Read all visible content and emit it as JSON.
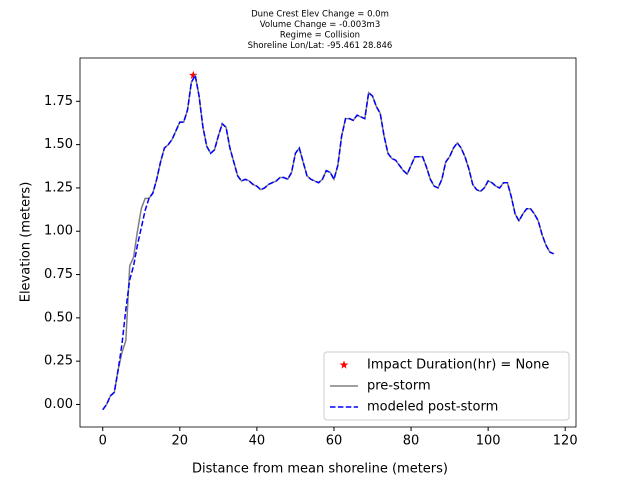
{
  "chart_data": {
    "type": "line",
    "title_lines": [
      "Dune Crest Elev Change = 0.0m",
      "Volume Change = -0.003m3",
      "Regime = Collision",
      "Shoreline Lon/Lat: -95.461 28.846"
    ],
    "x_label": "Distance from mean shoreline (meters)",
    "y_label": "Elevation (meters)",
    "xlim": [
      -5.9,
      122.8
    ],
    "ylim": [
      -0.13,
      2.0
    ],
    "xticks": [
      0,
      20,
      40,
      60,
      80,
      100,
      120
    ],
    "yticks": [
      {
        "value": 0,
        "label": "0.00"
      },
      {
        "value": 0.25,
        "label": "0.25"
      },
      {
        "value": 0.5,
        "label": "0.50"
      },
      {
        "value": 0.75,
        "label": "0.75"
      },
      {
        "value": 1,
        "label": "1.00"
      },
      {
        "value": 1.25,
        "label": "1.25"
      },
      {
        "value": 1.5,
        "label": "1.50"
      },
      {
        "value": 1.75,
        "label": "1.75"
      }
    ],
    "legend": "lower right",
    "x": [
      0,
      1,
      2,
      3,
      4,
      5,
      6,
      7,
      8,
      9,
      10,
      11,
      12,
      13,
      14,
      15,
      16,
      17,
      18,
      19,
      20,
      21,
      22,
      23,
      24,
      25,
      26,
      27,
      28,
      29,
      30,
      31,
      32,
      33,
      34,
      35,
      36,
      37,
      38,
      39,
      40,
      41,
      42,
      43,
      44,
      45,
      46,
      47,
      48,
      49,
      50,
      51,
      52,
      53,
      54,
      55,
      56,
      57,
      58,
      59,
      60,
      61,
      62,
      63,
      64,
      65,
      66,
      67,
      68,
      69,
      70,
      71,
      72,
      73,
      74,
      75,
      76,
      77,
      78,
      79,
      80,
      81,
      82,
      83,
      84,
      85,
      86,
      87,
      88,
      89,
      90,
      91,
      92,
      93,
      94,
      95,
      96,
      97,
      98,
      99,
      100,
      101,
      102,
      103,
      104,
      105,
      106,
      107,
      108,
      109,
      110,
      111,
      112,
      113,
      114,
      115,
      116,
      117
    ],
    "series": [
      {
        "name": "Impact Duration(hr) = None",
        "color": "#ff0000",
        "marker": "star",
        "x": [
          23.5
        ],
        "values": [
          1.9
        ]
      },
      {
        "name": "pre-storm",
        "color": "#808080",
        "style": "solid",
        "values": [
          -0.03,
          0.0,
          0.05,
          0.07,
          0.2,
          0.3,
          0.37,
          0.8,
          0.85,
          1.0,
          1.13,
          1.19,
          1.19,
          1.22,
          1.3,
          1.4,
          1.48,
          1.5,
          1.53,
          1.58,
          1.63,
          1.63,
          1.7,
          1.86,
          1.9,
          1.78,
          1.6,
          1.49,
          1.45,
          1.47,
          1.55,
          1.62,
          1.6,
          1.48,
          1.4,
          1.32,
          1.29,
          1.3,
          1.29,
          1.27,
          1.26,
          1.24,
          1.25,
          1.27,
          1.28,
          1.29,
          1.31,
          1.31,
          1.3,
          1.34,
          1.45,
          1.48,
          1.4,
          1.32,
          1.3,
          1.29,
          1.28,
          1.3,
          1.35,
          1.34,
          1.3,
          1.38,
          1.55,
          1.65,
          1.65,
          1.64,
          1.67,
          1.66,
          1.65,
          1.8,
          1.78,
          1.72,
          1.68,
          1.55,
          1.45,
          1.42,
          1.41,
          1.38,
          1.35,
          1.33,
          1.38,
          1.43,
          1.43,
          1.43,
          1.37,
          1.3,
          1.26,
          1.25,
          1.3,
          1.4,
          1.43,
          1.48,
          1.51,
          1.48,
          1.43,
          1.36,
          1.27,
          1.24,
          1.23,
          1.25,
          1.29,
          1.28,
          1.26,
          1.25,
          1.28,
          1.28,
          1.2,
          1.1,
          1.06,
          1.1,
          1.13,
          1.13,
          1.1,
          1.06,
          0.98,
          0.92,
          0.88,
          0.87
        ]
      },
      {
        "name": "modeled post-storm",
        "color": "#0000ff",
        "style": "dashed",
        "values": [
          -0.03,
          0.0,
          0.05,
          0.07,
          0.2,
          0.35,
          0.55,
          0.72,
          0.8,
          0.92,
          1.02,
          1.12,
          1.19,
          1.22,
          1.3,
          1.4,
          1.48,
          1.5,
          1.53,
          1.58,
          1.63,
          1.63,
          1.7,
          1.86,
          1.9,
          1.78,
          1.6,
          1.49,
          1.45,
          1.47,
          1.55,
          1.62,
          1.6,
          1.48,
          1.4,
          1.32,
          1.29,
          1.3,
          1.29,
          1.27,
          1.26,
          1.24,
          1.25,
          1.27,
          1.28,
          1.29,
          1.31,
          1.31,
          1.3,
          1.34,
          1.45,
          1.48,
          1.4,
          1.32,
          1.3,
          1.29,
          1.28,
          1.3,
          1.35,
          1.34,
          1.3,
          1.38,
          1.55,
          1.65,
          1.65,
          1.64,
          1.67,
          1.66,
          1.65,
          1.8,
          1.78,
          1.72,
          1.68,
          1.55,
          1.45,
          1.42,
          1.41,
          1.38,
          1.35,
          1.33,
          1.38,
          1.43,
          1.43,
          1.43,
          1.37,
          1.3,
          1.26,
          1.25,
          1.3,
          1.4,
          1.43,
          1.48,
          1.51,
          1.48,
          1.43,
          1.36,
          1.27,
          1.24,
          1.23,
          1.25,
          1.29,
          1.28,
          1.26,
          1.25,
          1.28,
          1.28,
          1.2,
          1.1,
          1.06,
          1.1,
          1.13,
          1.13,
          1.1,
          1.06,
          0.98,
          0.92,
          0.88,
          0.87
        ]
      }
    ]
  }
}
